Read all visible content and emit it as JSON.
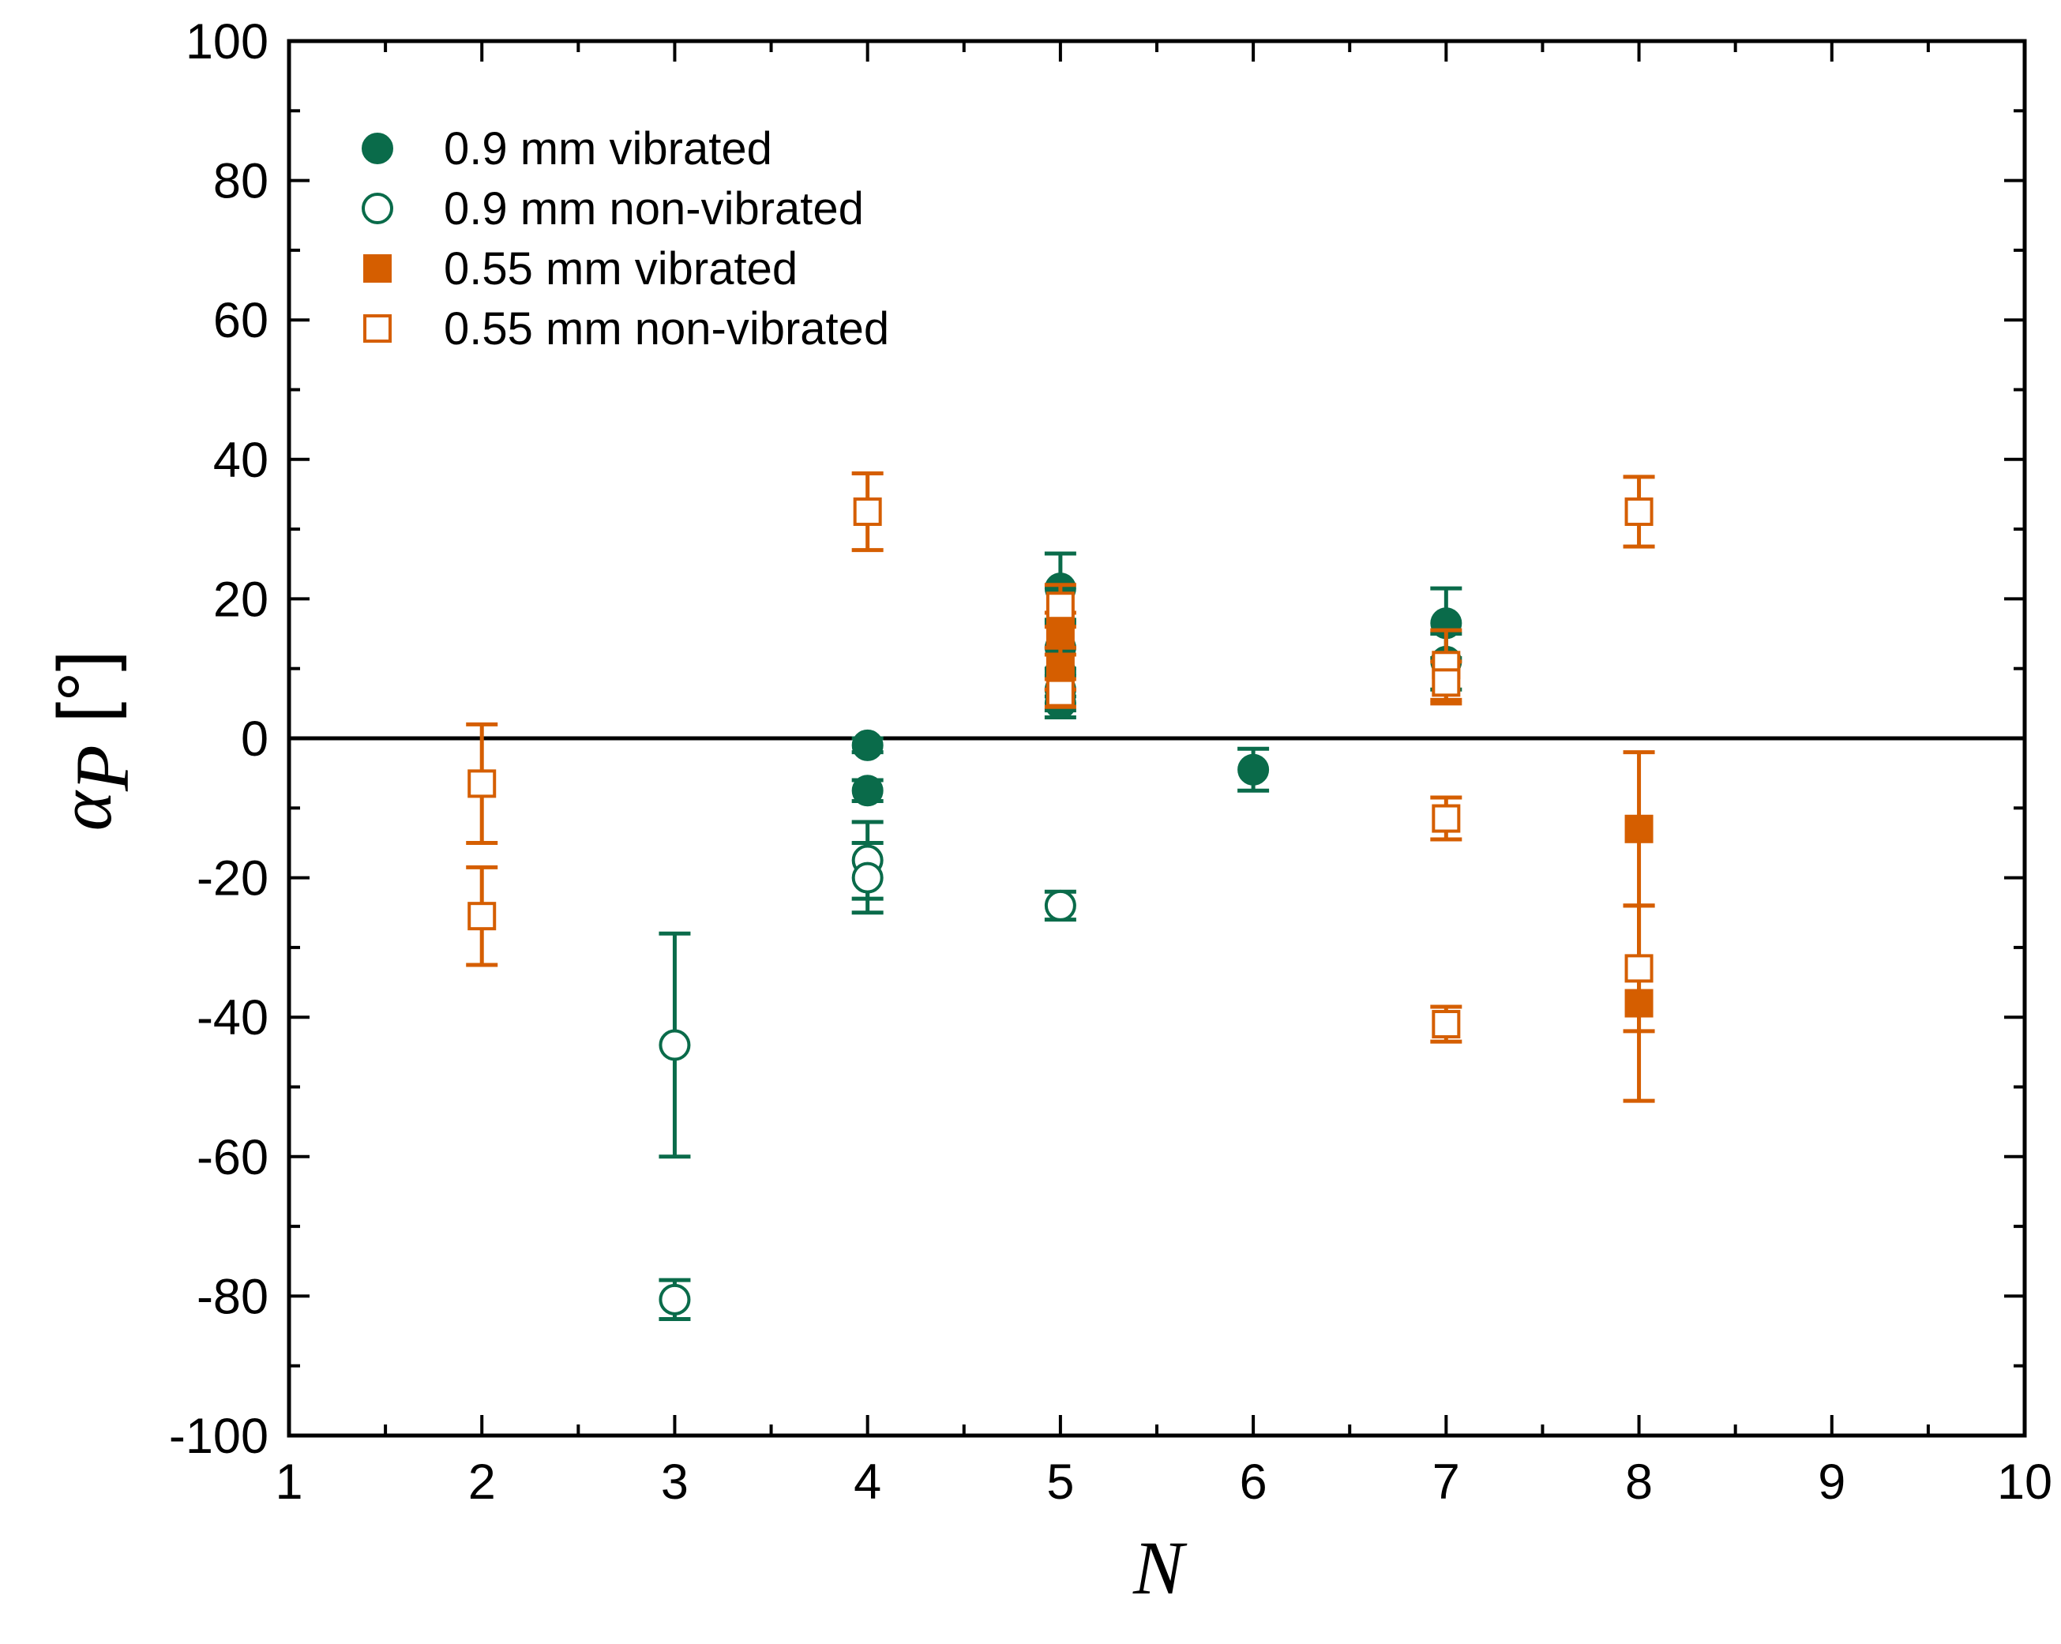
{
  "chart_data": {
    "type": "scatter",
    "title": "",
    "xlabel": "N",
    "ylabel": {
      "symbol": "α",
      "subscript": "P",
      "unit": "[°]"
    },
    "xlim": [
      1,
      10
    ],
    "ylim": [
      -100,
      100
    ],
    "xticks": [
      1,
      2,
      3,
      4,
      5,
      6,
      7,
      8,
      9,
      10
    ],
    "yticks": [
      -100,
      -80,
      -60,
      -40,
      -20,
      0,
      20,
      40,
      60,
      80,
      100
    ],
    "grid": false,
    "zero_line": true,
    "legend_position": "top-left",
    "colors": {
      "green": "#0a6b4a",
      "orange": "#d55e00",
      "axis": "#000000"
    },
    "series": [
      {
        "name": "0.9 mm vibrated",
        "marker": "circle",
        "filled": true,
        "color": "#0a6b4a",
        "points": [
          {
            "x": 4,
            "y": -1,
            "err": 1
          },
          {
            "x": 4,
            "y": -7.5,
            "err": 1.5
          },
          {
            "x": 5,
            "y": 21.5,
            "err": 5
          },
          {
            "x": 5,
            "y": 13,
            "err": 4
          },
          {
            "x": 5,
            "y": 9.5,
            "err": 3.5
          },
          {
            "x": 5,
            "y": 7,
            "err": 3
          },
          {
            "x": 5,
            "y": 5,
            "err": 2
          },
          {
            "x": 6,
            "y": -4.5,
            "err": 3
          },
          {
            "x": 7,
            "y": 16.5,
            "err": 5
          },
          {
            "x": 7,
            "y": 11,
            "err": 4
          }
        ]
      },
      {
        "name": "0.9 mm non-vibrated",
        "marker": "circle",
        "filled": false,
        "color": "#0a6b4a",
        "points": [
          {
            "x": 3,
            "y": -44,
            "err": 16
          },
          {
            "x": 3,
            "y": -80.5,
            "err": 2.8
          },
          {
            "x": 4,
            "y": -17.5,
            "err": 5.5
          },
          {
            "x": 4,
            "y": -20,
            "err": 5
          },
          {
            "x": 5,
            "y": -24,
            "err": 2
          }
        ]
      },
      {
        "name": "0.55 mm vibrated",
        "marker": "square",
        "filled": true,
        "color": "#d55e00",
        "points": [
          {
            "x": 5,
            "y": 15,
            "err": 3
          },
          {
            "x": 5,
            "y": 10,
            "err": 3
          },
          {
            "x": 8,
            "y": -13,
            "err": 11
          },
          {
            "x": 8,
            "y": -38,
            "err": 14
          }
        ]
      },
      {
        "name": "0.55 mm non-vibrated",
        "marker": "square",
        "filled": false,
        "color": "#d55e00",
        "points": [
          {
            "x": 2,
            "y": -6.5,
            "err": 8.5
          },
          {
            "x": 2,
            "y": -25.5,
            "err": 7
          },
          {
            "x": 4,
            "y": 32.5,
            "err": 5.5
          },
          {
            "x": 5,
            "y": 19,
            "err": 3
          },
          {
            "x": 5,
            "y": 6.5,
            "err": 2
          },
          {
            "x": 7,
            "y": 10.5,
            "err": 5
          },
          {
            "x": 7,
            "y": 8,
            "err": 3
          },
          {
            "x": 7,
            "y": -11.5,
            "err": 3
          },
          {
            "x": 7,
            "y": -41,
            "err": 2.5
          },
          {
            "x": 8,
            "y": 32.5,
            "err": 5
          },
          {
            "x": 8,
            "y": -33,
            "err": 9
          }
        ]
      }
    ]
  }
}
